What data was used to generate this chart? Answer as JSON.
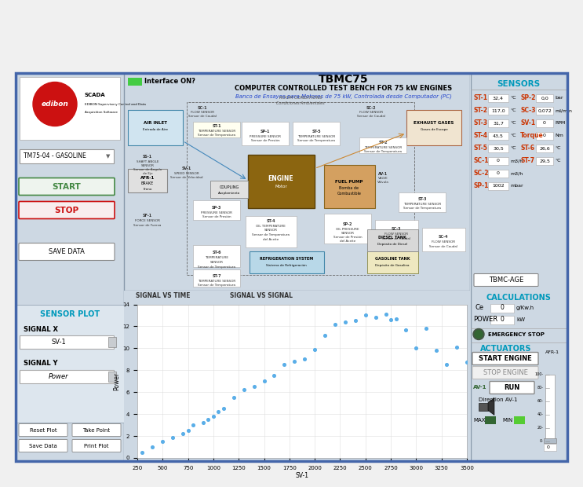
{
  "title": "TBMC75",
  "subtitle1": "COMPUTER CONTROLLED TEST BENCH FOR 75 kW ENGINES",
  "subtitle2": "Banco de Ensayos para Motores de 75 kW, Controlada desde Computador (PC)",
  "outer_bg": "#f0f0f0",
  "bg_color": "#cdd8e3",
  "left_panel_bg": "#dde6ee",
  "center_panel_bg": "white",
  "right_panel_bg": "#dde6ee",
  "scatter_x": [
    300,
    400,
    500,
    600,
    700,
    750,
    800,
    900,
    950,
    1000,
    1050,
    1100,
    1200,
    1300,
    1400,
    1500,
    1600,
    1700,
    1800,
    1900,
    2000,
    2100,
    2200,
    2300,
    2400,
    2500,
    2600,
    2700,
    2750,
    2800,
    2900,
    3000,
    3100,
    3200,
    3300,
    3400,
    3500
  ],
  "scatter_y": [
    0.5,
    1.0,
    1.5,
    1.8,
    2.2,
    2.5,
    3.0,
    3.2,
    3.5,
    3.8,
    4.2,
    4.5,
    5.5,
    6.2,
    6.5,
    7.0,
    7.5,
    8.5,
    8.8,
    9.0,
    9.9,
    11.2,
    12.2,
    12.4,
    12.5,
    13.0,
    12.8,
    13.1,
    12.6,
    12.7,
    11.7,
    10.0,
    11.8,
    9.8,
    8.5,
    10.1,
    8.7
  ],
  "scatter_color": "#5aaee8",
  "xlabel": "SV-1",
  "ylabel": "Power",
  "xlim": [
    250,
    3500
  ],
  "ylim": [
    0,
    14
  ],
  "xticks": [
    250,
    500,
    750,
    1000,
    1250,
    1500,
    1750,
    2000,
    2250,
    2500,
    2750,
    3000,
    3250,
    3500
  ],
  "yticks": [
    0,
    2,
    4,
    6,
    8,
    10,
    12,
    14
  ],
  "interface_on_color": "#44cc44",
  "edibon_red": "#cc1111",
  "blue_title": "#2244cc",
  "cyan_label": "#0099bb",
  "green_start": "#448844",
  "tab_labels": [
    "SIGNAL VS TIME",
    "SIGNAL VS SIGNAL"
  ],
  "sensors_left": [
    [
      "ST-1",
      "32,4",
      "°C"
    ],
    [
      "ST-2",
      "117,0",
      "°C"
    ],
    [
      "ST-3",
      "31,7",
      "°C"
    ],
    [
      "ST-4",
      "43,5",
      "°C"
    ],
    [
      "ST-5",
      "30,5",
      "°C"
    ],
    [
      "SC-1",
      "0",
      "m3/h"
    ],
    [
      "SC-2",
      "0",
      "m3/h"
    ],
    [
      "SP-1",
      "1002",
      "mbar"
    ]
  ],
  "sensors_right": [
    [
      "SP-2",
      "0,0",
      "bar"
    ],
    [
      "SC-3",
      "0,072",
      "ml/min"
    ],
    [
      "SV-1",
      "0",
      "RPM"
    ],
    [
      "Torque",
      "0",
      "Nm"
    ],
    [
      "ST-6",
      "26,6",
      "°C"
    ],
    [
      "ST-7",
      "29,5",
      "°C"
    ]
  ],
  "gauge_ticks": [
    0,
    20,
    40,
    60,
    80,
    100
  ]
}
